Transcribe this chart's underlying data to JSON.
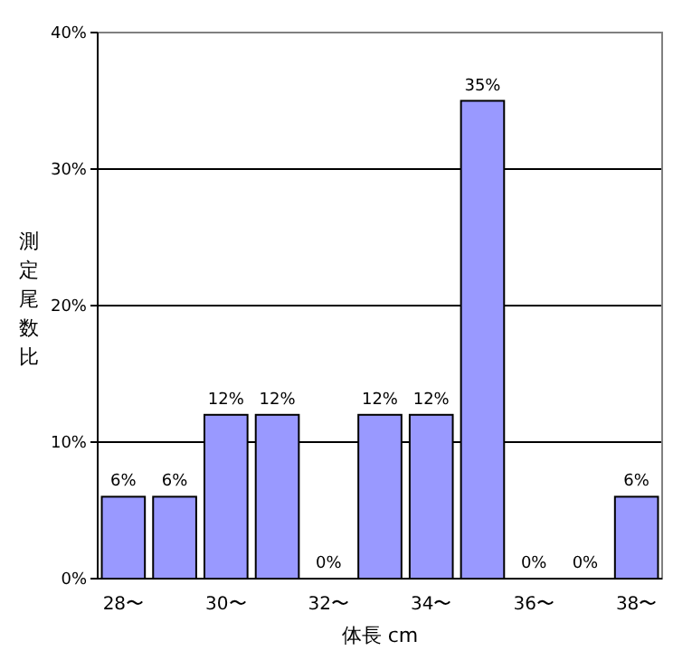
{
  "chart_data": {
    "type": "bar",
    "xlabel": "体長 cm",
    "ylabel": "測定尾数比",
    "categories": [
      "28〜",
      null,
      "30〜",
      null,
      "32〜",
      null,
      "34〜",
      null,
      "36〜",
      null,
      "38〜"
    ],
    "values": [
      6,
      6,
      12,
      12,
      0,
      12,
      12,
      35,
      0,
      0,
      6
    ],
    "value_labels": [
      "6%",
      "6%",
      "12%",
      "12%",
      "0%",
      "12%",
      "12%",
      "35%",
      "0%",
      "0%",
      "6%"
    ],
    "color": "#9999ff",
    "ylim": [
      0,
      40
    ],
    "yticks": [
      {
        "value": 0,
        "label": "0%"
      },
      {
        "value": 10,
        "label": "10%"
      },
      {
        "value": 20,
        "label": "20%"
      },
      {
        "value": 30,
        "label": "30%"
      },
      {
        "value": 40,
        "label": "40%"
      }
    ],
    "grid": "y"
  }
}
